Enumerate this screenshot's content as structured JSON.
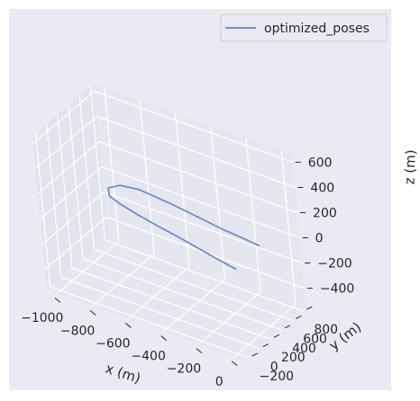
{
  "chart_data": {
    "type": "line",
    "projection": "3d",
    "legend_position": "top-right",
    "grid": true,
    "series": [
      {
        "name": "optimized_poses",
        "color": "#6f8fc8",
        "points": [
          {
            "x": -120,
            "y": 260,
            "z": -120
          },
          {
            "x": -250,
            "y": 300,
            "z": -110
          },
          {
            "x": -380,
            "y": 340,
            "z": -95
          },
          {
            "x": -500,
            "y": 380,
            "z": -85
          },
          {
            "x": -620,
            "y": 420,
            "z": -80
          },
          {
            "x": -740,
            "y": 470,
            "z": -75
          },
          {
            "x": -860,
            "y": 530,
            "z": -70
          },
          {
            "x": -940,
            "y": 600,
            "z": -75
          },
          {
            "x": -960,
            "y": 650,
            "z": -40
          },
          {
            "x": -900,
            "y": 680,
            "z": 0
          },
          {
            "x": -800,
            "y": 700,
            "z": 10
          },
          {
            "x": -600,
            "y": 640,
            "z": 20
          },
          {
            "x": -400,
            "y": 560,
            "z": 30
          },
          {
            "x": -250,
            "y": 460,
            "z": 60
          },
          {
            "x": -100,
            "y": 360,
            "z": 100
          },
          {
            "x": 20,
            "y": 280,
            "z": 130
          }
        ]
      }
    ],
    "axes": {
      "x": {
        "label": "x (m)",
        "ticks": [
          -1000,
          -800,
          -600,
          -400,
          -200,
          0
        ],
        "tick_labels": [
          "−1000",
          "−800",
          "−600",
          "−400",
          "−200",
          "0"
        ],
        "range": [
          -1060,
          60
        ]
      },
      "y": {
        "label": "y (m)",
        "ticks": [
          -200,
          0,
          200,
          400,
          600,
          800
        ],
        "tick_labels": [
          "−200",
          "0",
          "200",
          "400",
          "600",
          "800"
        ],
        "range": [
          -260,
          860
        ]
      },
      "z": {
        "label": "z (m)",
        "ticks": [
          -400,
          -200,
          0,
          200,
          400,
          600
        ],
        "tick_labels": [
          "−400",
          "−200",
          "0",
          "200",
          "400",
          "600"
        ],
        "range": [
          -560,
          660
        ]
      }
    }
  }
}
